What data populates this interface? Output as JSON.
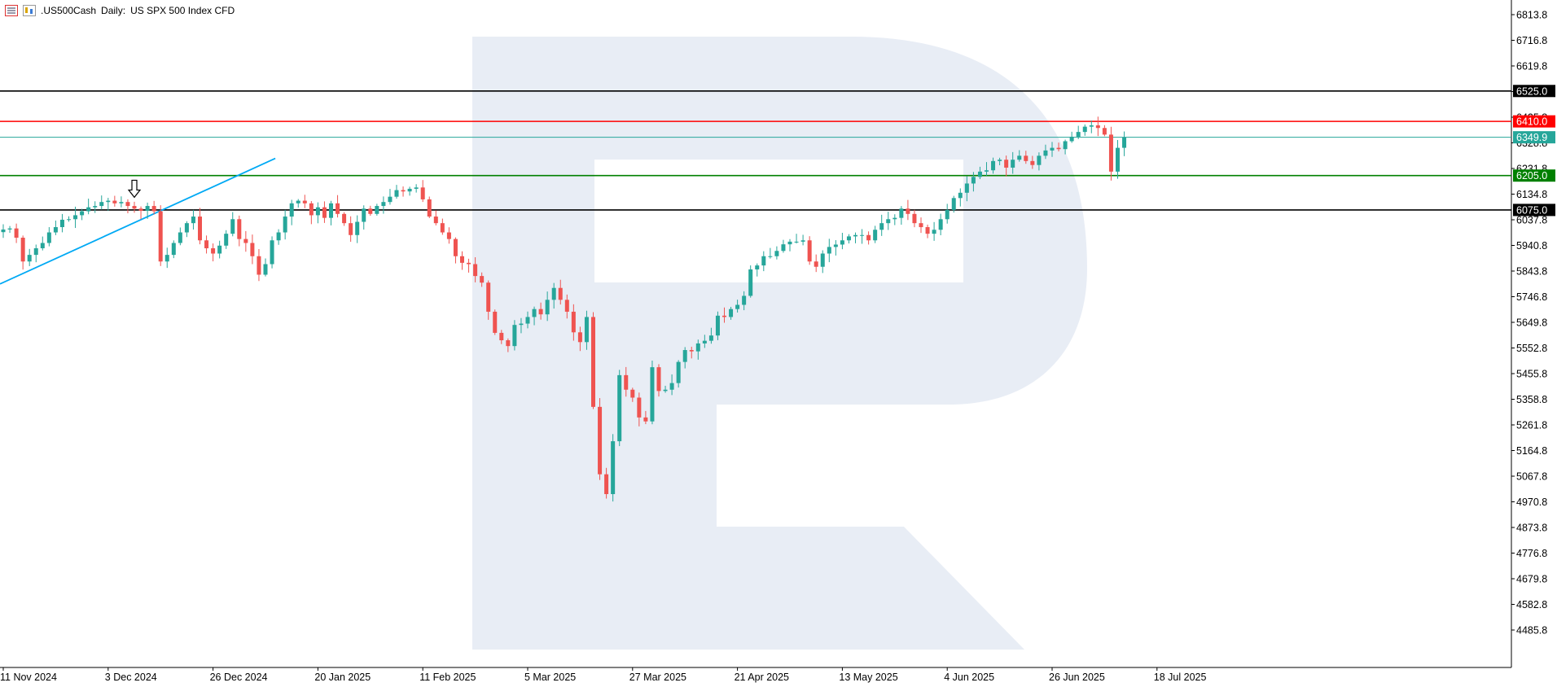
{
  "header": {
    "symbol": ".US500Cash",
    "timeframe": "Daily:",
    "description": "US SPX 500 Index CFD"
  },
  "colors": {
    "bull": "#26a69a",
    "bear": "#ef5350",
    "trendline": "#00a9f4",
    "resistance": "#ff0000",
    "support": "#008000",
    "black_level": "#000000",
    "current_price": "#26a69a",
    "watermark": "#e8edf5"
  },
  "chart_data": {
    "type": "candlestick",
    "title": ".US500Cash, Daily: US SPX 500 Index CFD",
    "y_ticks": [
      "6813.8",
      "6716.8",
      "6619.8",
      "6522.8",
      "6425.8",
      "6328.8",
      "6231.8",
      "6134.8",
      "6037.8",
      "5940.8",
      "5843.8",
      "5746.8",
      "5649.8",
      "5552.8",
      "5455.8",
      "5358.8",
      "5261.8",
      "5164.8",
      "5067.8",
      "4970.8",
      "4873.8",
      "4776.8",
      "4679.8",
      "4582.8",
      "4485.8"
    ],
    "ylim": [
      4445,
      6845
    ],
    "x_ticks": [
      "11 Nov 2024",
      "3 Dec 2024",
      "26 Dec 2024",
      "20 Jan 2025",
      "11 Feb 2025",
      "5 Mar 2025",
      "27 Mar 2025",
      "21 Apr 2025",
      "13 May 2025",
      "4 Jun 2025",
      "26 Jun 2025",
      "18 Jul 2025"
    ],
    "levels": [
      {
        "value": 6525.0,
        "label": "6525.0",
        "role": "black"
      },
      {
        "value": 6410.0,
        "label": "6410.0",
        "role": "resistance"
      },
      {
        "value": 6349.9,
        "label": "6349.9",
        "role": "current"
      },
      {
        "value": 6205.0,
        "label": "6205.0",
        "role": "support"
      },
      {
        "value": 6075.0,
        "label": "6075.0",
        "role": "black"
      }
    ],
    "trendline": {
      "from": {
        "bar": 0,
        "price": 5795
      },
      "to": {
        "bar": 42,
        "price": 6270
      }
    },
    "signal_arrow": {
      "bar": 20,
      "price": 6095,
      "direction": "down"
    },
    "closes": [
      6001,
      6005,
      5970,
      5880,
      5905,
      5930,
      5950,
      5990,
      6010,
      6038,
      6040,
      6055,
      6070,
      6085,
      6090,
      6105,
      6110,
      6100,
      6105,
      6090,
      6080,
      6072,
      6090,
      6070,
      5880,
      5905,
      5950,
      5990,
      6025,
      6050,
      5960,
      5930,
      5910,
      5940,
      5985,
      6040,
      5965,
      5950,
      5900,
      5830,
      5870,
      5960,
      5990,
      6050,
      6100,
      6110,
      6100,
      6055,
      6085,
      6045,
      6100,
      6060,
      6025,
      5980,
      6030,
      6080,
      6060,
      6090,
      6105,
      6125,
      6150,
      6145,
      6155,
      6160,
      6115,
      6050,
      6025,
      5990,
      5965,
      5900,
      5875,
      5870,
      5825,
      5800,
      5690,
      5610,
      5582,
      5560,
      5640,
      5645,
      5670,
      5700,
      5680,
      5735,
      5780,
      5735,
      5690,
      5612,
      5575,
      5670,
      5330,
      5075,
      5000,
      5200,
      5450,
      5395,
      5365,
      5290,
      5275,
      5480,
      5390,
      5395,
      5420,
      5500,
      5545,
      5540,
      5570,
      5580,
      5600,
      5675,
      5670,
      5700,
      5716,
      5750,
      5850,
      5865,
      5900,
      5900,
      5920,
      5945,
      5955,
      5955,
      5960,
      5880,
      5860,
      5910,
      5935,
      5944,
      5960,
      5975,
      5980,
      5980,
      5960,
      6000,
      6025,
      6040,
      6045,
      6080,
      6060,
      6025,
      6010,
      5985,
      6000,
      6040,
      6075,
      6120,
      6140,
      6175,
      6200,
      6220,
      6225,
      6260,
      6265,
      6235,
      6265,
      6280,
      6260,
      6245,
      6280,
      6300,
      6310,
      6305,
      6335,
      6352,
      6370,
      6390,
      6395,
      6385,
      6360,
      6220,
      6310,
      6349.9
    ],
    "last_price": 6349.9
  }
}
